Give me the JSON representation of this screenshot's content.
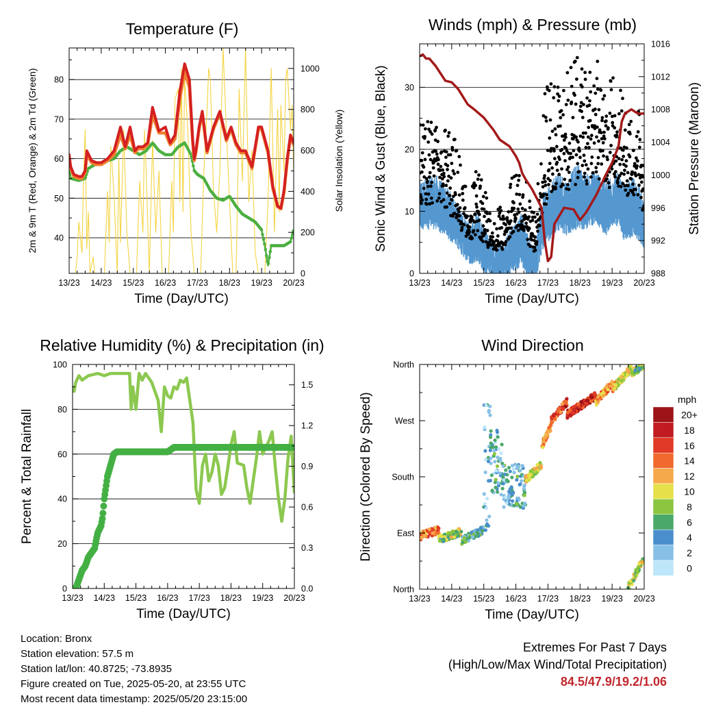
{
  "colors": {
    "temp2m": "#d42020",
    "temp9m": "#f08030",
    "dewpoint": "#4caf40",
    "solar": "#f5d442",
    "wind": "#5598d0",
    "gust": "#000000",
    "pressure": "#a31a1a",
    "rh": "#8cc850",
    "rain": "#44b044",
    "extremes": "#c0272d"
  },
  "x_ticks": [
    "13/23",
    "14/23",
    "15/23",
    "16/23",
    "17/23",
    "18/23",
    "19/23",
    "20/23"
  ],
  "chart_data": [
    {
      "type": "line",
      "title": "Temperature (F)",
      "xlabel": "Time (Day/UTC)",
      "ylabel": "2m & 9m T (Red, Orange) & 2m Td (Green)",
      "ylabel_right": "Solar Insolation (Yellow)",
      "ylim": [
        31,
        88
      ],
      "ylim_right": [
        0,
        1100
      ],
      "y_ticks": [
        40,
        50,
        60,
        70,
        80
      ],
      "y_ticks_right": [
        0,
        200,
        400,
        600,
        800,
        1000
      ],
      "grid": true,
      "series": [
        {
          "x": [
            0,
            0.05,
            0.15,
            0.3,
            0.4,
            0.5,
            0.55,
            0.7,
            0.85,
            1.0,
            1.2,
            1.4,
            1.6,
            1.75,
            1.9,
            2.05,
            2.15,
            2.3,
            2.45,
            2.6,
            2.8,
            3.0,
            3.15,
            3.3,
            3.45,
            3.6,
            3.75,
            3.85,
            3.9,
            3.95,
            4.05,
            4.15,
            4.3,
            4.5,
            4.7,
            4.9,
            5.05,
            5.2,
            5.35,
            5.5,
            5.7,
            5.9,
            6.0,
            6.2,
            6.35,
            6.5,
            6.6,
            6.7,
            6.8,
            6.9,
            7.0
          ],
          "values": [
            61,
            58,
            56,
            55.5,
            55.5,
            57,
            62,
            59.5,
            59,
            59,
            60,
            62,
            68,
            63,
            68,
            62,
            63,
            63,
            64,
            73,
            67,
            68,
            64,
            66,
            77,
            84,
            80,
            65,
            60,
            62,
            68,
            72,
            62,
            68,
            72,
            65,
            68,
            64,
            62,
            62,
            58,
            68,
            68,
            62,
            53,
            48,
            47.5,
            52,
            60,
            66,
            64
          ]
        },
        {
          "x": [
            0,
            0.05,
            0.15,
            0.3,
            0.4,
            0.5,
            0.55,
            0.7,
            0.85,
            1.0,
            1.2,
            1.4,
            1.6,
            1.75,
            1.9,
            2.05,
            2.15,
            2.3,
            2.45,
            2.6,
            2.8,
            3.0,
            3.15,
            3.3,
            3.45,
            3.6,
            3.75,
            3.85,
            3.9,
            3.95,
            4.05,
            4.15,
            4.3,
            4.5,
            4.7,
            4.9,
            5.05,
            5.2,
            5.35,
            5.5,
            5.7,
            5.9,
            6.0,
            6.2,
            6.35,
            6.5,
            6.6,
            6.7,
            6.8,
            6.9,
            7.0
          ],
          "values": [
            60.5,
            57.5,
            55.5,
            55,
            55,
            56.5,
            61,
            59,
            58.5,
            58.5,
            59.5,
            61,
            66,
            62.5,
            66,
            61.5,
            62.5,
            62.5,
            63.5,
            71,
            66.5,
            66.5,
            63.5,
            65,
            75,
            82,
            78,
            64.5,
            59.5,
            61.5,
            67.5,
            71.5,
            61.5,
            67.5,
            71.5,
            64.5,
            67.5,
            63.5,
            61.5,
            61.5,
            57.5,
            67.5,
            67.5,
            61.5,
            52.5,
            47.8,
            47.3,
            51.5,
            59.5,
            65.5,
            63.5
          ]
        },
        {
          "x": [
            0,
            0.05,
            0.3,
            0.5,
            0.6,
            0.8,
            1.0,
            1.2,
            1.4,
            1.6,
            1.8,
            2.0,
            2.2,
            2.4,
            2.6,
            2.8,
            3.0,
            3.2,
            3.4,
            3.6,
            3.8,
            3.9,
            4.0,
            4.2,
            4.4,
            4.6,
            4.8,
            5.0,
            5.2,
            5.4,
            5.6,
            5.8,
            6.0,
            6.1,
            6.2,
            6.3,
            6.5,
            6.7,
            6.9,
            7.0
          ],
          "values": [
            60,
            55,
            54.5,
            55,
            57.5,
            58.5,
            58.5,
            59.5,
            60,
            62,
            63,
            62,
            61,
            62,
            64,
            62,
            61,
            61,
            63,
            64,
            61,
            57,
            56,
            55,
            52,
            50,
            49.5,
            50.5,
            48,
            46,
            45,
            44,
            42,
            38,
            33,
            38,
            38,
            38,
            39,
            42
          ]
        },
        {
          "x": [
            0.1,
            0.2,
            0.25,
            0.3,
            0.4,
            0.45,
            0.5,
            0.55,
            0.6,
            0.65,
            0.75,
            0.8,
            1.1,
            1.2,
            1.25,
            1.3,
            1.4,
            1.5,
            1.55,
            1.6,
            1.7,
            1.8,
            1.9,
            2.1,
            2.2,
            2.3,
            2.35,
            2.4,
            2.5,
            2.6,
            2.7,
            2.8,
            2.9,
            3.1,
            3.2,
            3.25,
            3.3,
            3.4,
            3.45,
            3.5,
            3.55,
            3.6,
            3.7,
            3.8,
            3.9,
            4.1,
            4.2,
            4.3,
            4.35,
            4.4,
            4.5,
            4.6,
            4.7,
            4.8,
            4.9,
            5.1,
            5.2,
            5.25,
            5.3,
            5.4,
            5.5,
            5.6,
            5.7,
            5.8,
            5.9,
            6.1,
            6.2,
            6.3,
            6.4,
            6.5,
            6.55,
            6.6,
            6.7,
            6.75,
            6.8,
            6.9,
            6.95,
            7.0
          ],
          "values": [
            0,
            0,
            80,
            250,
            100,
            480,
            700,
            120,
            300,
            0,
            80,
            0,
            0,
            400,
            150,
            620,
            380,
            0,
            560,
            150,
            700,
            200,
            0,
            0,
            450,
            200,
            700,
            500,
            0,
            650,
            200,
            500,
            0,
            0,
            450,
            200,
            850,
            900,
            350,
            1000,
            300,
            950,
            700,
            200,
            0,
            0,
            500,
            800,
            1000,
            950,
            400,
            200,
            500,
            1100,
            700,
            0,
            0,
            350,
            900,
            450,
            1100,
            350,
            600,
            100,
            0,
            0,
            350,
            1000,
            200,
            800,
            300,
            820,
            500,
            950,
            1000,
            700,
            820,
            500
          ]
        }
      ],
      "series_names_note": ""
    },
    {
      "type": "scatter",
      "title": "Winds (mph) & Pressure (mb)",
      "xlabel": "Time (Day/UTC)",
      "ylabel": "Sonic Wind & Gust (Blue, Black)",
      "ylabel_right": "Station Pressure (Maroon)",
      "ylim": [
        0,
        37
      ],
      "ylim_right": [
        988,
        1016
      ],
      "y_ticks": [
        0,
        10,
        20,
        30
      ],
      "y_ticks_right": [
        988,
        992,
        996,
        1000,
        1004,
        1008,
        1012,
        1016
      ],
      "grid": true,
      "wind_envelope": {
        "x": [
          0,
          0.5,
          1.0,
          1.3,
          1.6,
          1.8,
          2.0,
          2.3,
          2.6,
          2.9,
          3.2,
          3.4,
          3.6,
          3.8,
          4.0,
          4.3,
          4.6,
          4.9,
          5.2,
          5.5,
          5.8,
          6.1,
          6.4,
          6.7,
          7.0
        ],
        "mean": [
          11,
          11,
          9,
          7,
          5,
          6,
          4,
          2,
          2,
          4,
          5,
          3,
          2,
          7,
          9,
          11,
          10,
          11,
          11,
          12,
          10,
          12,
          9,
          10,
          8
        ],
        "max": [
          15,
          16,
          13,
          10,
          8,
          10,
          8,
          5,
          5,
          8,
          10,
          6,
          4,
          12,
          14,
          17,
          15,
          18,
          16,
          17,
          15,
          17,
          14,
          16,
          12
        ]
      },
      "gust_envelope": {
        "x": [
          0,
          0.5,
          1.0,
          1.3,
          1.6,
          1.8,
          2.0,
          2.3,
          2.6,
          2.9,
          3.2,
          3.4,
          3.6,
          3.8,
          4.0,
          4.3,
          4.6,
          4.9,
          5.2,
          5.5,
          5.8,
          6.1,
          6.4,
          6.7,
          7.0
        ],
        "mean": [
          17,
          17,
          14,
          10,
          8,
          10,
          7,
          5,
          6,
          9,
          11,
          7,
          5,
          14,
          18,
          21,
          20,
          22,
          22,
          24,
          20,
          23,
          18,
          19,
          15
        ],
        "max": [
          24,
          25,
          24,
          18,
          14,
          18,
          14,
          10,
          11,
          16,
          18,
          13,
          10,
          25,
          34,
          30,
          33,
          35,
          32,
          35,
          30,
          33,
          28,
          30,
          24
        ]
      },
      "pressure": {
        "x": [
          0,
          0.1,
          0.2,
          0.3,
          0.5,
          0.8,
          1.0,
          1.2,
          1.5,
          1.7,
          2.0,
          2.3,
          2.5,
          2.8,
          3.0,
          3.1,
          3.2,
          3.3,
          3.5,
          3.7,
          3.8,
          3.9,
          4.0,
          4.1,
          4.2,
          4.5,
          4.8,
          5.0,
          5.2,
          5.5,
          5.8,
          6.0,
          6.2,
          6.3,
          6.4,
          6.6,
          6.8,
          7.0
        ],
        "values": [
          1014.5,
          1014.7,
          1014.2,
          1014.2,
          1013.3,
          1011.5,
          1011.3,
          1010.5,
          1008.6,
          1008,
          1007,
          1005.5,
          1004.3,
          1003.5,
          1002.3,
          1001.5,
          1000.2,
          999.5,
          998.3,
          996.8,
          996,
          992,
          989.5,
          990,
          994,
          996,
          995.8,
          994.5,
          995.5,
          997.5,
          1000,
          1001.5,
          1003.5,
          1006.5,
          1007.5,
          1008,
          1007.5,
          1007.5
        ]
      }
    },
    {
      "type": "line",
      "title": "Relative Humidity (%) & Precipitation (in)",
      "xlabel": "Time (Day/UTC)",
      "ylabel": "Percent & Total Rainfall",
      "ylim": [
        0,
        100
      ],
      "ylim_right": [
        0,
        1.65
      ],
      "y_ticks": [
        0,
        20,
        40,
        60,
        80,
        100
      ],
      "y_ticks_right": [
        "0.0",
        "0.3",
        "0.6",
        "0.9",
        "1.2",
        "1.5"
      ],
      "grid": true,
      "series": [
        {
          "x": [
            0,
            0.05,
            0.1,
            0.2,
            0.3,
            0.5,
            0.8,
            1.0,
            1.2,
            1.4,
            1.6,
            1.8,
            1.85,
            1.9,
            2.0,
            2.1,
            2.2,
            2.3,
            2.5,
            2.6,
            2.7,
            2.8,
            2.9,
            3.0,
            3.1,
            3.2,
            3.3,
            3.4,
            3.5,
            3.6,
            3.8,
            3.9,
            4.0,
            4.1,
            4.2,
            4.3,
            4.4,
            4.5,
            4.6,
            4.7,
            4.8,
            4.9,
            5.0,
            5.1,
            5.2,
            5.4,
            5.5,
            5.6,
            5.7,
            5.8,
            5.9,
            6.0,
            6.2,
            6.3,
            6.4,
            6.5,
            6.6,
            6.7,
            6.8,
            6.9,
            7.0
          ],
          "values": [
            90,
            88,
            92,
            95,
            93,
            95,
            96,
            95,
            96,
            96,
            96,
            96,
            80,
            90,
            80,
            96,
            93,
            96,
            92,
            88,
            84,
            70,
            90,
            86,
            85,
            90,
            89,
            93,
            92,
            94,
            74,
            44,
            38,
            55,
            60,
            48,
            52,
            60,
            55,
            42,
            45,
            54,
            64,
            70,
            56,
            55,
            45,
            38,
            48,
            58,
            70,
            60,
            66,
            70,
            54,
            40,
            30,
            40,
            58,
            68,
            43
          ]
        },
        {
          "x": [
            0,
            0.1,
            0.15,
            0.2,
            0.25,
            0.3,
            0.4,
            0.45,
            0.5,
            0.6,
            0.7,
            0.75,
            0.8,
            0.9,
            0.95,
            1.0,
            1.05,
            1.1,
            1.2,
            1.3,
            1.4,
            1.5,
            1.6,
            1.7,
            1.8,
            2.0,
            2.5,
            3.0,
            3.2,
            3.5,
            4.0,
            5.0,
            6.0,
            7.0
          ],
          "values": [
            0,
            0,
            2,
            4,
            6,
            8,
            10,
            12,
            14,
            16,
            18,
            22,
            25,
            28,
            32,
            40,
            45,
            50,
            55,
            60,
            61,
            61,
            61,
            61,
            61,
            61,
            61,
            61,
            63,
            63,
            63,
            63,
            63,
            63
          ]
        }
      ],
      "rain_total_note": ""
    },
    {
      "type": "scatter",
      "title": "Wind Direction",
      "xlabel": "Time (Day/UTC)",
      "ylabel": "Direction (Colored By Speed)",
      "y_ticks": [
        "North",
        "East",
        "South",
        "West",
        "North"
      ],
      "ylim": [
        0,
        360
      ],
      "legend_title": "mph",
      "legend_labels": [
        "0",
        "2",
        "4",
        "6",
        "8",
        "10",
        "12",
        "14",
        "16",
        "18",
        "20+"
      ],
      "legend_colors": [
        "#bde6fa",
        "#86c0e6",
        "#4a8fcc",
        "#4aa86a",
        "#8cc63f",
        "#e6e04a",
        "#f5a94a",
        "#f06a2e",
        "#e03a26",
        "#c01c22",
        "#9c1418"
      ],
      "legend_placement": "right",
      "clusters": [
        {
          "x0": 0,
          "x1": 0.6,
          "dir0": 85,
          "dir1": 95,
          "speed": 14
        },
        {
          "x0": 0.6,
          "x1": 1.3,
          "dir0": 80,
          "dir1": 92,
          "speed": 8
        },
        {
          "x0": 1.3,
          "x1": 2.0,
          "dir0": 78,
          "dir1": 95,
          "speed": 5
        },
        {
          "x0": 2.0,
          "x1": 2.2,
          "dir0": 80,
          "dir1": 300,
          "speed": 3
        },
        {
          "x0": 2.2,
          "x1": 2.6,
          "dir0": 150,
          "dir1": 250,
          "speed": 4
        },
        {
          "x0": 2.6,
          "x1": 3.3,
          "dir0": 130,
          "dir1": 200,
          "speed": 4
        },
        {
          "x0": 3.3,
          "x1": 3.8,
          "dir0": 175,
          "dir1": 200,
          "speed": 9
        },
        {
          "x0": 3.8,
          "x1": 4.1,
          "dir0": 230,
          "dir1": 260,
          "speed": 12
        },
        {
          "x0": 4.1,
          "x1": 4.6,
          "dir0": 270,
          "dir1": 300,
          "speed": 16
        },
        {
          "x0": 4.6,
          "x1": 5.5,
          "dir0": 280,
          "dir1": 310,
          "speed": 17
        },
        {
          "x0": 5.5,
          "x1": 6.0,
          "dir0": 300,
          "dir1": 330,
          "speed": 13
        },
        {
          "x0": 6.0,
          "x1": 6.6,
          "dir0": 320,
          "dir1": 355,
          "speed": 11
        },
        {
          "x0": 6.6,
          "x1": 7.0,
          "dir0": 345,
          "dir1": 360,
          "speed": 8
        },
        {
          "x0": 6.5,
          "x1": 7.0,
          "dir0": 2,
          "dir1": 50,
          "speed": 9
        }
      ]
    }
  ],
  "info": {
    "location": "Location: Bronx",
    "elevation": "Station elevation: 57.5 m",
    "latlon": "Station lat/lon: 40.8725; -73.8935",
    "created": "Figure created on Tue, 2025-05-20, at 23:55 UTC",
    "recent": "Most recent data timestamp: 2025/05/20 23:15:00"
  },
  "extremes": {
    "title": "Extremes For Past 7 Days",
    "subtitle": "(High/Low/Max Wind/Total Precipitation)",
    "values": "84.5/47.9/19.2/1.06"
  }
}
